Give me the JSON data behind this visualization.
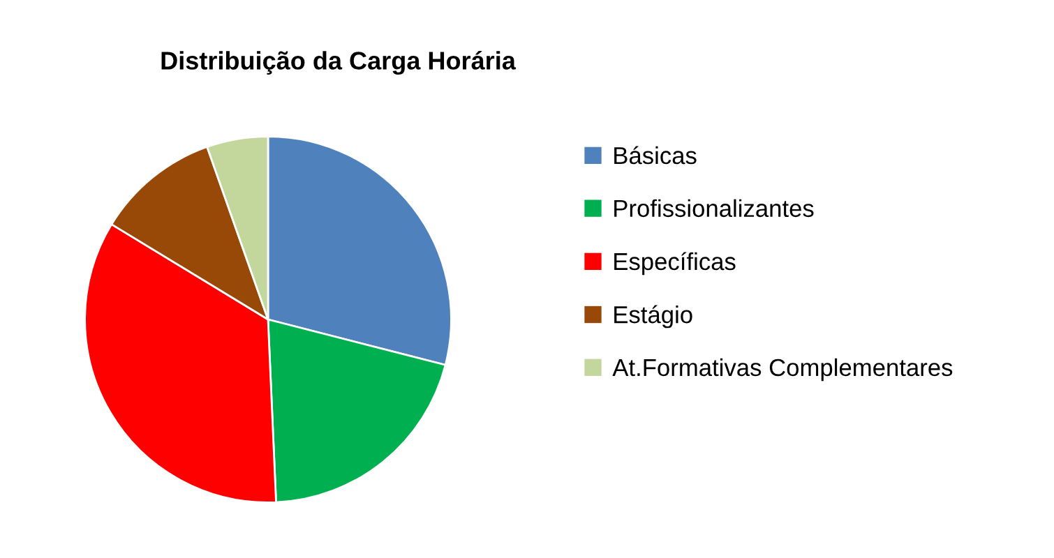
{
  "chart_data": {
    "type": "pie",
    "title": "Distribuição da Carga Horária",
    "categories": [
      "Básicas",
      "Profissionalizantes",
      "Específicas",
      "Estágio",
      "At.Formativas Complementares"
    ],
    "values": [
      29.0,
      20.3,
      34.4,
      10.9,
      5.4
    ],
    "colors": [
      "#4f81bd",
      "#00b050",
      "#ff0000",
      "#984807",
      "#c3d69b"
    ],
    "legend": "right"
  }
}
